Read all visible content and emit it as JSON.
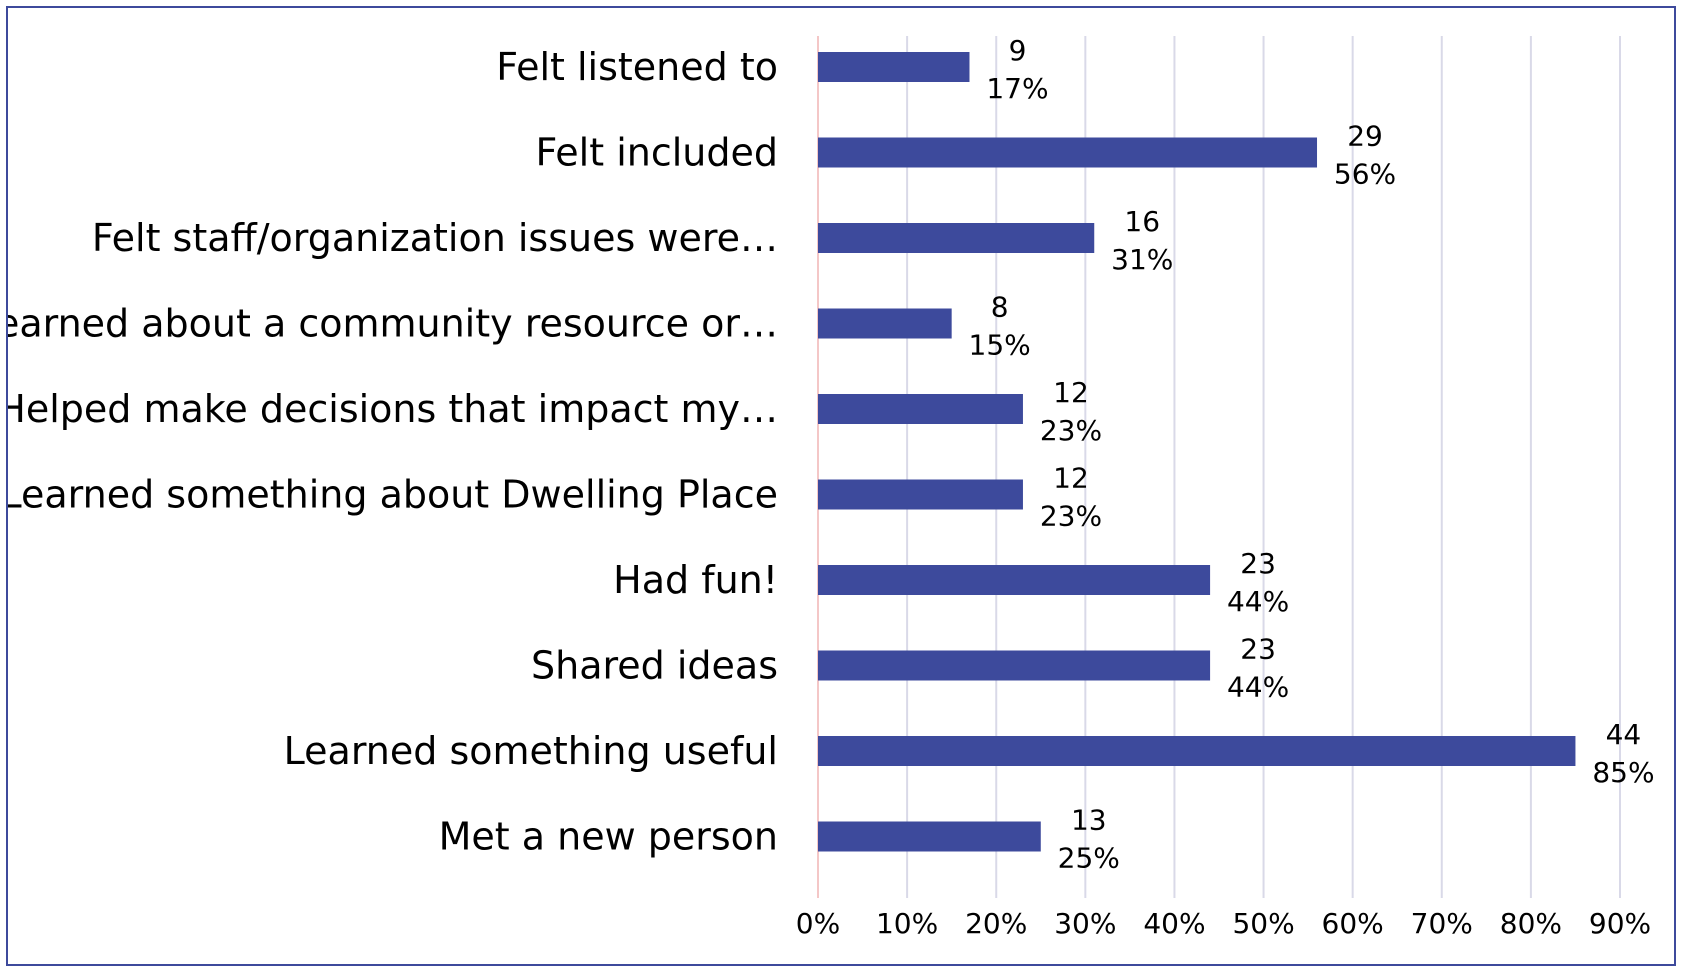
{
  "chart_data": {
    "type": "bar",
    "orientation": "horizontal",
    "categories": [
      "Felt listened to",
      "Felt included",
      "Felt staff/organization issues were…",
      "Learned about a community resource or…",
      "Helped make decisions that impact my…",
      "Learned something about Dwelling Place",
      "Had fun!",
      "Shared ideas",
      "Learned something useful",
      "Met a new person"
    ],
    "counts": [
      9,
      29,
      16,
      8,
      12,
      12,
      23,
      23,
      44,
      13
    ],
    "values": [
      17,
      56,
      31,
      15,
      23,
      23,
      44,
      44,
      85,
      25
    ],
    "count_labels": [
      "9",
      "29",
      "16",
      "8",
      "12",
      "12",
      "23",
      "23",
      "44",
      "13"
    ],
    "percent_labels": [
      "17%",
      "56%",
      "31%",
      "15%",
      "23%",
      "23%",
      "44%",
      "44%",
      "85%",
      "25%"
    ],
    "xlim": [
      0,
      90
    ],
    "x_ticks": [
      0,
      10,
      20,
      30,
      40,
      50,
      60,
      70,
      80,
      90
    ],
    "x_tick_labels": [
      "0%",
      "10%",
      "20%",
      "30%",
      "40%",
      "50%",
      "60%",
      "70%",
      "80%",
      "90%"
    ],
    "title": "",
    "xlabel": "",
    "ylabel": "",
    "grid": "vertical",
    "legend": "none",
    "colors": {
      "bar": "#3d4a9c",
      "grid": "#d9d9e8",
      "zero_line": "#f4c7c7",
      "border": "#3d4a9c"
    }
  }
}
